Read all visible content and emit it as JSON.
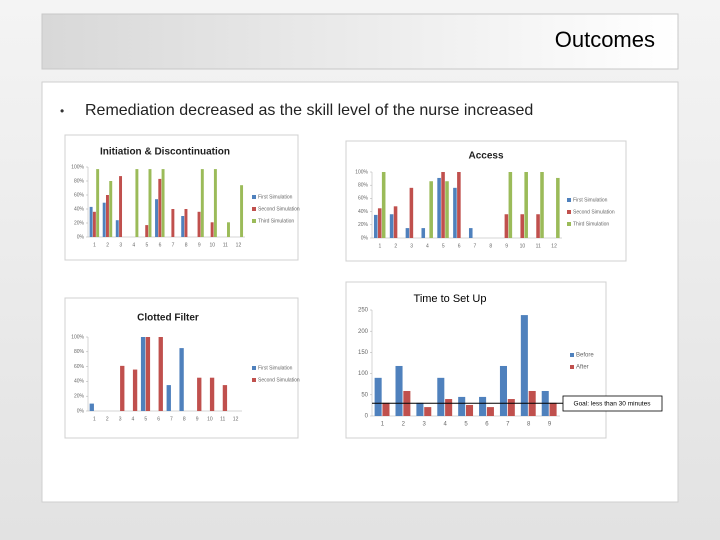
{
  "slide": {
    "title": "Outcomes",
    "bullet": "Remediation decreased as the skill level of the nurse increased"
  },
  "chart_data": [
    {
      "type": "bar",
      "title": "Initiation & Discontinuation",
      "categories": [
        "1",
        "2",
        "3",
        "4",
        "5",
        "6",
        "7",
        "8",
        "9",
        "10",
        "11",
        "12"
      ],
      "series": [
        {
          "name": "First Simulation",
          "color": "#4f81bd",
          "values": [
            43,
            49,
            24,
            null,
            null,
            54,
            null,
            30,
            null,
            null,
            null,
            null
          ]
        },
        {
          "name": "Second Simulation",
          "color": "#c0504d",
          "values": [
            36,
            60,
            87,
            null,
            17,
            83,
            40,
            40,
            36,
            21,
            null,
            null
          ]
        },
        {
          "name": "Third Simulation",
          "color": "#9bbb59",
          "values": [
            97,
            80,
            null,
            97,
            97,
            97,
            null,
            null,
            97,
            97,
            21,
            74
          ]
        }
      ],
      "ylim": [
        0,
        100
      ],
      "yticks": [
        {
          "value": 0,
          "label": "0%"
        },
        {
          "value": 20,
          "label": "20%"
        },
        {
          "value": 40,
          "label": "40%"
        },
        {
          "value": 60,
          "label": "60%"
        },
        {
          "value": 80,
          "label": "80%"
        },
        {
          "value": 100,
          "label": "100%"
        }
      ],
      "legend": "right"
    },
    {
      "type": "bar",
      "title": "Access",
      "categories": [
        "1",
        "2",
        "3",
        "4",
        "5",
        "6",
        "7",
        "8",
        "9",
        "10",
        "11",
        "12"
      ],
      "series": [
        {
          "name": "First Simulation",
          "color": "#4f81bd",
          "values": [
            35,
            36,
            15,
            15,
            91,
            76,
            15,
            null,
            null,
            null,
            null,
            null
          ]
        },
        {
          "name": "Second Simulation",
          "color": "#c0504d",
          "values": [
            45,
            48,
            76,
            null,
            100,
            100,
            null,
            null,
            36,
            36,
            36,
            null
          ]
        },
        {
          "name": "Third Simulation",
          "color": "#9bbb59",
          "values": [
            100,
            null,
            null,
            86,
            86,
            null,
            null,
            null,
            100,
            100,
            100,
            91
          ]
        }
      ],
      "ylim": [
        0,
        100
      ],
      "yticks": [
        {
          "value": 0,
          "label": "0%"
        },
        {
          "value": 20,
          "label": "20%"
        },
        {
          "value": 40,
          "label": "40%"
        },
        {
          "value": 60,
          "label": "60%"
        },
        {
          "value": 80,
          "label": "80%"
        },
        {
          "value": 100,
          "label": "100%"
        }
      ],
      "legend": "right"
    },
    {
      "type": "bar",
      "title": "Clotted Filter",
      "categories": [
        "1",
        "2",
        "3",
        "4",
        "5",
        "6",
        "7",
        "8",
        "9",
        "10",
        "11",
        "12"
      ],
      "series": [
        {
          "name": "First Simulation",
          "color": "#4f81bd",
          "values": [
            10,
            null,
            null,
            null,
            100,
            null,
            35,
            85,
            null,
            null,
            null,
            null
          ]
        },
        {
          "name": "Second Simulation",
          "color": "#c0504d",
          "values": [
            null,
            null,
            61,
            56,
            100,
            100,
            null,
            null,
            45,
            45,
            35,
            null
          ]
        }
      ],
      "ylim": [
        0,
        100
      ],
      "yticks": [
        {
          "value": 0,
          "label": "0%"
        },
        {
          "value": 20,
          "label": "20%"
        },
        {
          "value": 40,
          "label": "40%"
        },
        {
          "value": 60,
          "label": "60%"
        },
        {
          "value": 80,
          "label": "80%"
        },
        {
          "value": 100,
          "label": "100%"
        }
      ],
      "legend": "right"
    },
    {
      "type": "bar",
      "title": "Time to Set Up",
      "categories": [
        "1",
        "2",
        "3",
        "4",
        "5",
        "6",
        "7",
        "8",
        "9"
      ],
      "series": [
        {
          "name": "Before",
          "color": "#4f81bd",
          "values": [
            90,
            118,
            31,
            90,
            45,
            45,
            118,
            238,
            59
          ]
        },
        {
          "name": "After",
          "color": "#c0504d",
          "values": [
            31,
            59,
            21,
            40,
            26,
            21,
            40,
            59,
            31
          ]
        }
      ],
      "ylim": [
        0,
        250
      ],
      "yticks": [
        0,
        50,
        100,
        150,
        200,
        250
      ],
      "legend": "right",
      "goal_line": 30,
      "annotation": "Goal: less than 30 minutes"
    }
  ]
}
